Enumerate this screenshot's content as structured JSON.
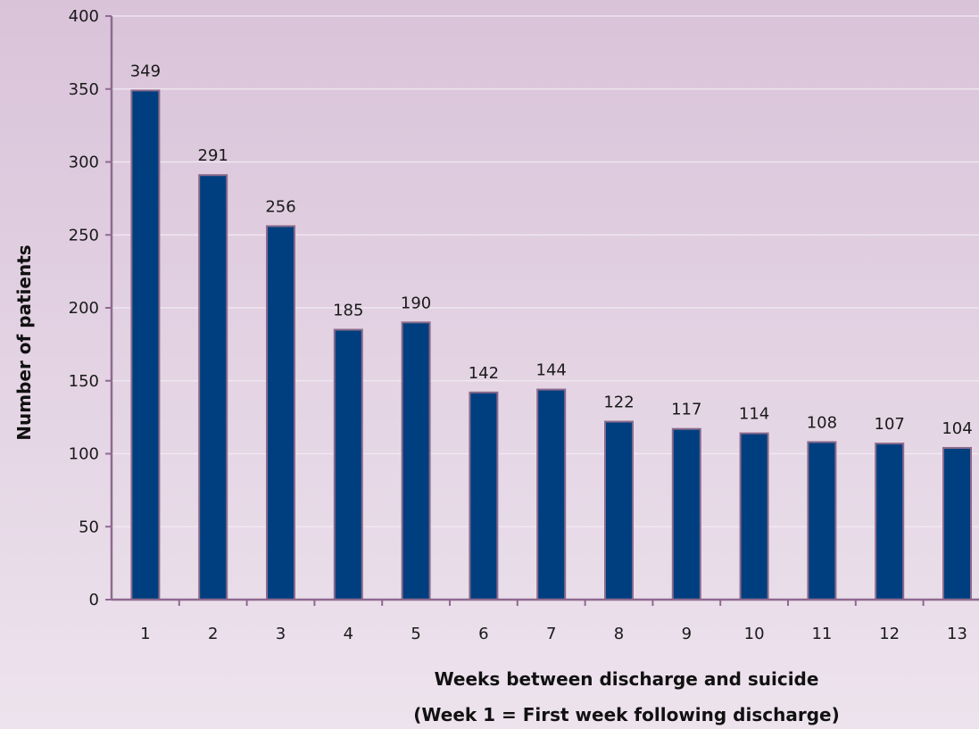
{
  "chart_data": {
    "type": "bar",
    "categories": [
      "1",
      "2",
      "3",
      "4",
      "5",
      "6",
      "7",
      "8",
      "9",
      "10",
      "11",
      "12",
      "13"
    ],
    "values": [
      349,
      291,
      256,
      185,
      190,
      142,
      144,
      122,
      117,
      114,
      108,
      107,
      104
    ],
    "data_labels": [
      "349",
      "291",
      "256",
      "185",
      "190",
      "142",
      "144",
      "122",
      "117",
      "114",
      "108",
      "107",
      "104"
    ],
    "ylim": [
      0,
      400
    ],
    "yticks": [
      0,
      50,
      100,
      150,
      200,
      250,
      300,
      350,
      400
    ],
    "ytick_labels": [
      "0",
      "50",
      "100",
      "150",
      "200",
      "250",
      "300",
      "350",
      "400"
    ],
    "ylabel": "Number of patients",
    "xlabel_line1": "Weeks between discharge and suicide",
    "xlabel_line2": "(Week 1 =  First week following discharge)",
    "grid": true,
    "legend": "none",
    "colors": {
      "bar_fill": "#003F7F",
      "bar_stroke": "#8B6A8C",
      "axis": "#8E6A90",
      "grid": "#F2EAF2",
      "background_top": "#D9C3D9",
      "background_bottom": "#EDE3ED"
    }
  }
}
